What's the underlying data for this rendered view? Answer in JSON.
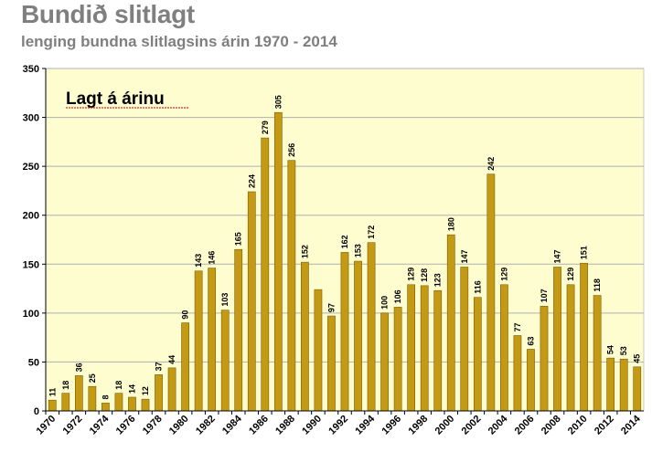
{
  "header": {
    "title": "Bundið slitlagt",
    "subtitle": "lenging bundna slitlagsins árin 1970 - 2014"
  },
  "chart_data": {
    "type": "bar",
    "annotation": "Lagt á árinu",
    "categories": [
      "1970",
      "1971",
      "1972",
      "1973",
      "1974",
      "1975",
      "1976",
      "1977",
      "1978",
      "1979",
      "1980",
      "1981",
      "1982",
      "1983",
      "1984",
      "1985",
      "1986",
      "1987",
      "1988",
      "1989",
      "1990",
      "1991",
      "1992",
      "1993",
      "1994",
      "1995",
      "1996",
      "1997",
      "1998",
      "1999",
      "2000",
      "2001",
      "2002",
      "2003",
      "2004",
      "2005",
      "2006",
      "2007",
      "2008",
      "2009",
      "2010",
      "2011",
      "2012",
      "2013",
      "2014"
    ],
    "x_tick_labels": [
      "1970",
      "1972",
      "1974",
      "1976",
      "1978",
      "1980",
      "1982",
      "1984",
      "1986",
      "1988",
      "1990",
      "1992",
      "1994",
      "1996",
      "1998",
      "2000",
      "2002",
      "2004",
      "2006",
      "2008",
      "2010",
      "2012",
      "2014"
    ],
    "values": [
      11,
      18,
      36,
      25,
      8,
      18,
      14,
      12,
      37,
      44,
      90,
      143,
      146,
      103,
      165,
      224,
      279,
      305,
      256,
      152,
      124,
      97,
      162,
      153,
      172,
      100,
      106,
      129,
      128,
      123,
      180,
      147,
      116,
      242,
      129,
      77,
      63,
      107,
      147,
      129,
      151,
      118,
      54,
      53,
      45
    ],
    "data_labels": [
      "11",
      "18",
      "36",
      "25",
      "8",
      "18",
      "14",
      "12",
      "37",
      "44",
      "90",
      "143",
      "146",
      "103",
      "165",
      "224",
      "279",
      "305",
      "256",
      "152",
      "",
      "97",
      "162",
      "153",
      "172",
      "100",
      "106",
      "129",
      "128",
      "123",
      "180",
      "147",
      "116",
      "242",
      "129",
      "77",
      "63",
      "107",
      "147",
      "129",
      "151",
      "118",
      "54",
      "53",
      "45"
    ],
    "ylim": [
      0,
      350
    ],
    "y_ticks": [
      0,
      50,
      100,
      150,
      200,
      250,
      300,
      350
    ],
    "grid": true,
    "colors": {
      "bar": "#c49a14",
      "bar_edge": "#7a5c05",
      "plot_bg": "#fdfdd0",
      "grid": "#b0b0b0"
    }
  }
}
